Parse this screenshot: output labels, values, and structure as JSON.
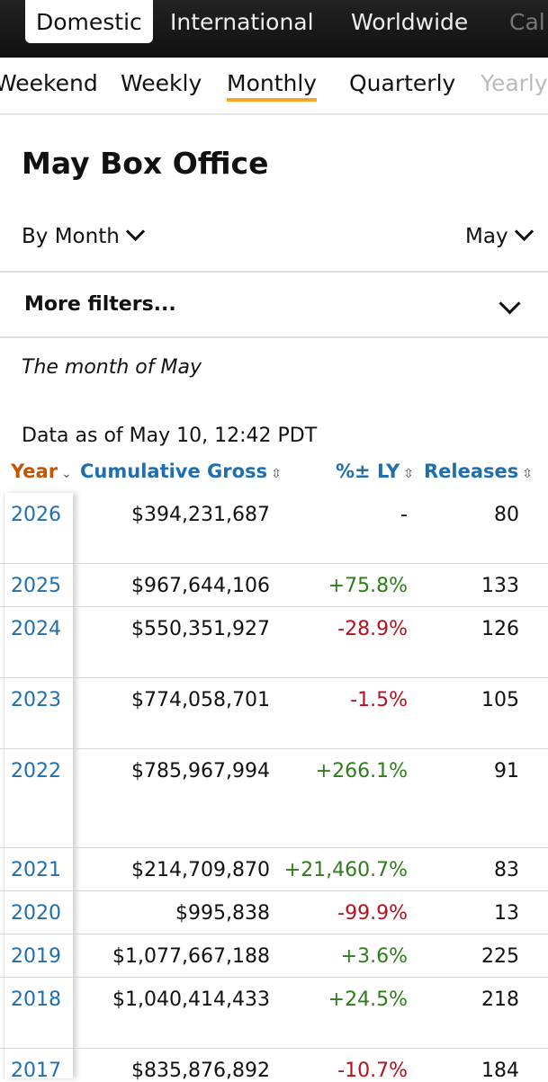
{
  "top_tabs": [
    "Domestic",
    "International",
    "Worldwide",
    "Cal"
  ],
  "sub_tabs": [
    "Weekend",
    "Weekly",
    "Monthly",
    "Quarterly",
    "Yearly"
  ],
  "page_title": "May Box Office",
  "dropdowns": {
    "by_label": "By Month",
    "month_label": "May"
  },
  "more_filters": "More filters...",
  "month_note": "The month of May",
  "data_as_of": "Data as of May 10, 12:42 PDT",
  "table": {
    "headers": {
      "year": "Year",
      "gross": "Cumulative Gross",
      "pct": "%± LY",
      "releases": "Releases"
    },
    "rows": [
      {
        "year": "2026",
        "gross": "$394,231,687",
        "pct": "-",
        "releases": "80"
      },
      {
        "year": "2025",
        "gross": "$967,644,106",
        "pct": "+75.8%",
        "releases": "133"
      },
      {
        "year": "2024",
        "gross": "$550,351,927",
        "pct": "-28.9%",
        "releases": "126"
      },
      {
        "year": "2023",
        "gross": "$774,058,701",
        "pct": "-1.5%",
        "releases": "105"
      },
      {
        "year": "2022",
        "gross": "$785,967,994",
        "pct": "+266.1%",
        "releases": "91"
      },
      {
        "year": "2021",
        "gross": "$214,709,870",
        "pct": "+21,460.7%",
        "releases": "83"
      },
      {
        "year": "2020",
        "gross": "$995,838",
        "pct": "-99.9%",
        "releases": "13"
      },
      {
        "year": "2019",
        "gross": "$1,077,667,188",
        "pct": "+3.6%",
        "releases": "225"
      },
      {
        "year": "2018",
        "gross": "$1,040,414,433",
        "pct": "+24.5%",
        "releases": "218"
      },
      {
        "year": "2017",
        "gross": "$835,876,892",
        "pct": "-10.7%",
        "releases": "184"
      }
    ]
  },
  "colors": {
    "accent": "#f5a623",
    "link": "#1f6fae",
    "sorted_header": "#c45500",
    "positive": "#2e7d1a",
    "negative": "#b3121f"
  }
}
